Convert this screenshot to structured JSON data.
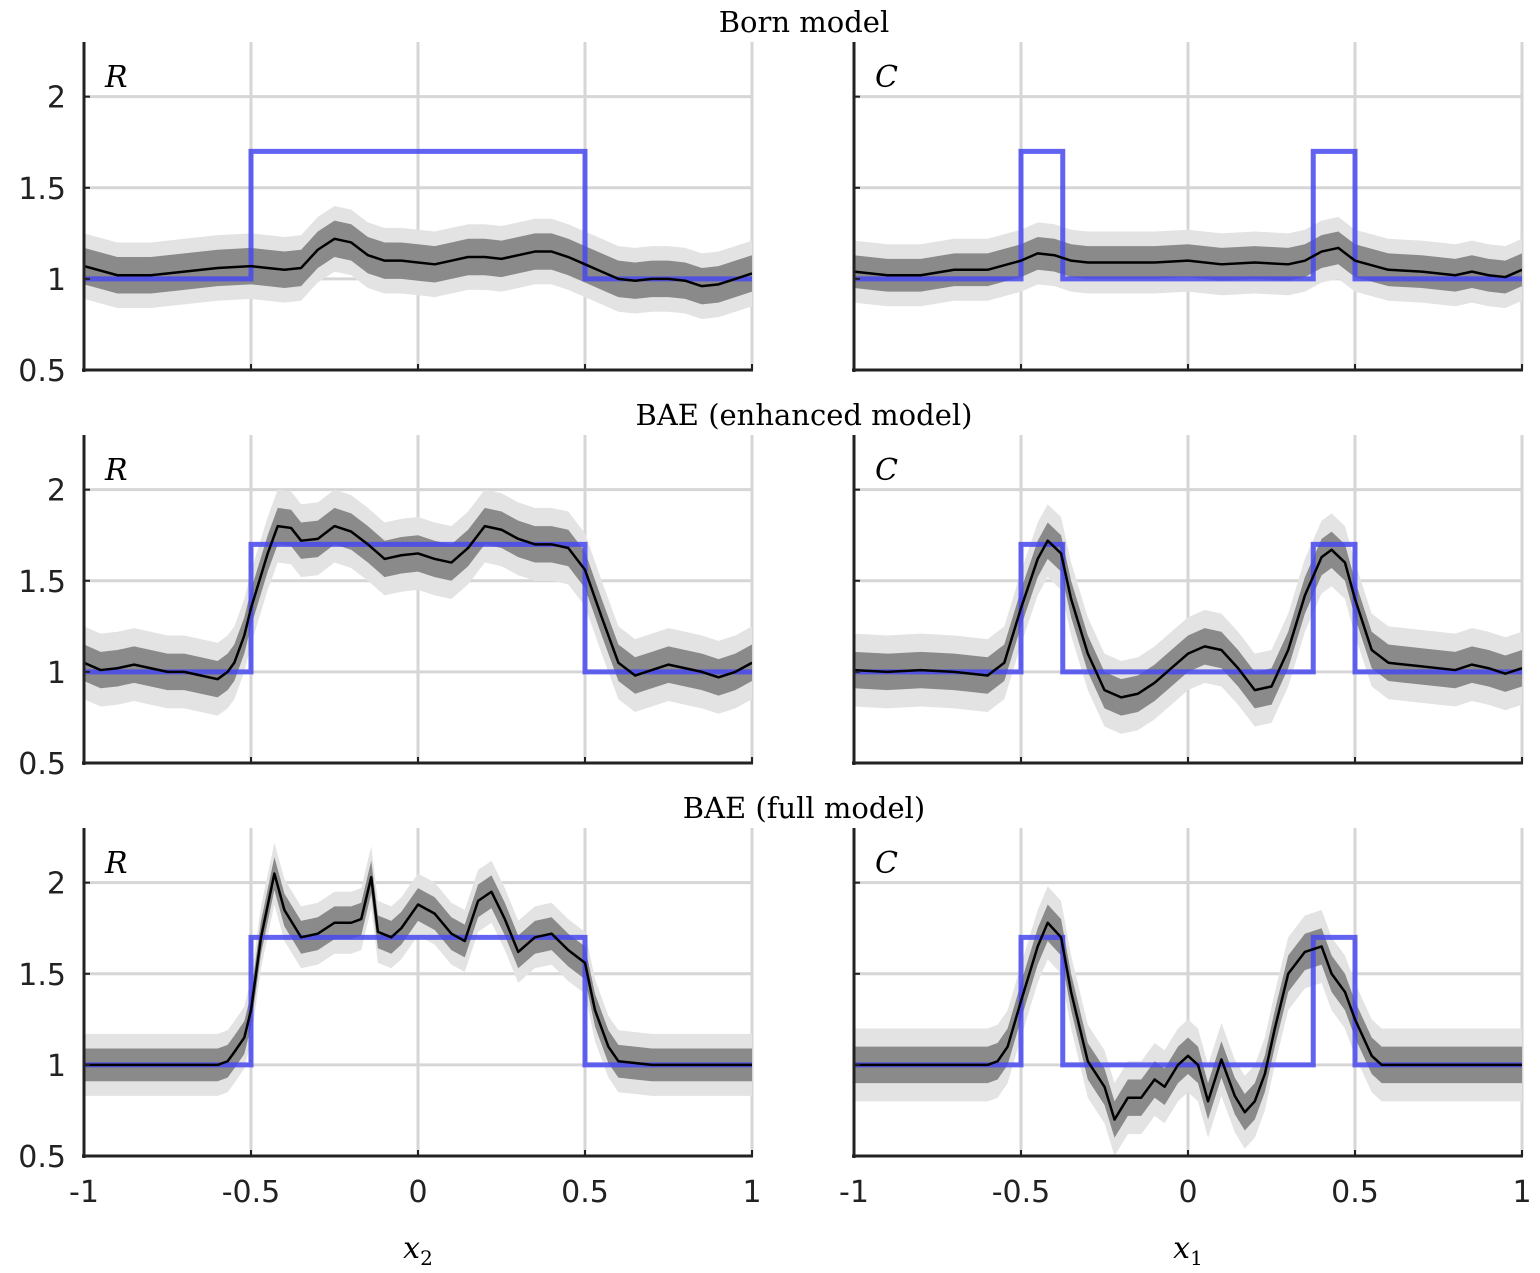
{
  "row_titles": [
    "Born model",
    "BAE (enhanced model)",
    "BAE (full model)"
  ],
  "panel_labels": [
    "R",
    "C"
  ],
  "xlabels": [
    {
      "var": "x",
      "sub": "2"
    },
    {
      "var": "x",
      "sub": "1"
    }
  ],
  "x_ticks": [
    "-1",
    "-0.5",
    "0",
    "0.5",
    "1"
  ],
  "y_ticks": [
    "0.5",
    "1",
    "1.5",
    "2"
  ],
  "colors": {
    "truth": "#4848f0",
    "estimate": "#000000",
    "band_inner": "#8a8a8a",
    "band_outer": "#e3e3e3",
    "grid": "#d6d6d6",
    "axis": "#222222"
  },
  "chart_data": [
    {
      "type": "line",
      "row": "Born model",
      "panel": "R",
      "xlabel": "x_2",
      "xlim": [
        -1,
        1
      ],
      "ylim": [
        0.5,
        2.3
      ],
      "grid": true,
      "truth": {
        "x": [
          -1,
          -0.5,
          -0.5,
          0.5,
          0.5,
          1
        ],
        "y": [
          1,
          1,
          1.7,
          1.7,
          1,
          1
        ]
      },
      "x": [
        -1,
        -0.9,
        -0.8,
        -0.7,
        -0.6,
        -0.5,
        -0.45,
        -0.4,
        -0.35,
        -0.3,
        -0.25,
        -0.2,
        -0.15,
        -0.1,
        -0.05,
        0,
        0.05,
        0.1,
        0.15,
        0.2,
        0.25,
        0.3,
        0.35,
        0.4,
        0.45,
        0.5,
        0.55,
        0.6,
        0.65,
        0.7,
        0.75,
        0.8,
        0.85,
        0.9,
        0.95,
        1
      ],
      "mean": [
        1.07,
        1.02,
        1.02,
        1.04,
        1.06,
        1.07,
        1.06,
        1.05,
        1.06,
        1.16,
        1.22,
        1.2,
        1.13,
        1.1,
        1.1,
        1.09,
        1.08,
        1.1,
        1.12,
        1.12,
        1.11,
        1.13,
        1.15,
        1.15,
        1.12,
        1.08,
        1.04,
        1,
        0.99,
        1,
        1,
        0.99,
        0.96,
        0.97,
        1,
        1.03
      ],
      "inner_halfwidth": 0.1,
      "outer_halfwidth": 0.18
    },
    {
      "type": "line",
      "row": "Born model",
      "panel": "C",
      "xlabel": "x_1",
      "xlim": [
        -1,
        1
      ],
      "ylim": [
        0.5,
        2.3
      ],
      "grid": true,
      "truth": {
        "x": [
          -1,
          -0.5,
          -0.5,
          -0.375,
          -0.375,
          0.375,
          0.375,
          0.5,
          0.5,
          1
        ],
        "y": [
          1,
          1,
          1.7,
          1.7,
          1,
          1,
          1.7,
          1.7,
          1,
          1
        ]
      },
      "x": [
        -1,
        -0.9,
        -0.8,
        -0.7,
        -0.6,
        -0.5,
        -0.45,
        -0.4,
        -0.35,
        -0.3,
        -0.2,
        -0.1,
        0,
        0.1,
        0.2,
        0.3,
        0.35,
        0.4,
        0.45,
        0.5,
        0.6,
        0.7,
        0.8,
        0.85,
        0.9,
        0.95,
        1
      ],
      "mean": [
        1.04,
        1.02,
        1.02,
        1.05,
        1.05,
        1.1,
        1.14,
        1.13,
        1.1,
        1.09,
        1.09,
        1.09,
        1.1,
        1.08,
        1.09,
        1.08,
        1.1,
        1.15,
        1.17,
        1.1,
        1.05,
        1.04,
        1.02,
        1.04,
        1.02,
        1.01,
        1.05
      ],
      "inner_halfwidth": 0.09,
      "outer_halfwidth": 0.17
    },
    {
      "type": "line",
      "row": "BAE (enhanced model)",
      "panel": "R",
      "xlabel": "x_2",
      "xlim": [
        -1,
        1
      ],
      "ylim": [
        0.5,
        2.3
      ],
      "grid": true,
      "truth": {
        "x": [
          -1,
          -0.5,
          -0.5,
          0.5,
          0.5,
          1
        ],
        "y": [
          1,
          1,
          1.7,
          1.7,
          1,
          1
        ]
      },
      "x": [
        -1,
        -0.95,
        -0.9,
        -0.85,
        -0.8,
        -0.75,
        -0.7,
        -0.65,
        -0.6,
        -0.57,
        -0.55,
        -0.52,
        -0.5,
        -0.45,
        -0.42,
        -0.38,
        -0.35,
        -0.3,
        -0.25,
        -0.2,
        -0.15,
        -0.1,
        -0.05,
        0,
        0.05,
        0.1,
        0.15,
        0.2,
        0.25,
        0.3,
        0.35,
        0.4,
        0.45,
        0.5,
        0.55,
        0.6,
        0.65,
        0.7,
        0.75,
        0.8,
        0.85,
        0.9,
        0.95,
        1
      ],
      "mean": [
        1.05,
        1.01,
        1.02,
        1.04,
        1.02,
        1.0,
        1.0,
        0.98,
        0.96,
        1.0,
        1.05,
        1.2,
        1.35,
        1.65,
        1.8,
        1.79,
        1.72,
        1.73,
        1.8,
        1.77,
        1.7,
        1.62,
        1.64,
        1.65,
        1.62,
        1.6,
        1.68,
        1.8,
        1.78,
        1.73,
        1.7,
        1.7,
        1.68,
        1.56,
        1.3,
        1.05,
        0.98,
        1.01,
        1.04,
        1.02,
        1.0,
        0.97,
        1.0,
        1.05
      ],
      "inner_halfwidth": 0.1,
      "outer_halfwidth": 0.2
    },
    {
      "type": "line",
      "row": "BAE (enhanced model)",
      "panel": "C",
      "xlabel": "x_1",
      "xlim": [
        -1,
        1
      ],
      "ylim": [
        0.5,
        2.3
      ],
      "grid": true,
      "truth": {
        "x": [
          -1,
          -0.5,
          -0.5,
          -0.375,
          -0.375,
          0.375,
          0.375,
          0.5,
          0.5,
          1
        ],
        "y": [
          1,
          1,
          1.7,
          1.7,
          1,
          1,
          1.7,
          1.7,
          1,
          1
        ]
      },
      "x": [
        -1,
        -0.9,
        -0.8,
        -0.7,
        -0.6,
        -0.55,
        -0.5,
        -0.45,
        -0.42,
        -0.38,
        -0.35,
        -0.3,
        -0.25,
        -0.2,
        -0.15,
        -0.1,
        -0.05,
        0,
        0.05,
        0.1,
        0.15,
        0.2,
        0.25,
        0.3,
        0.35,
        0.4,
        0.43,
        0.47,
        0.5,
        0.55,
        0.6,
        0.7,
        0.8,
        0.85,
        0.9,
        0.95,
        1
      ],
      "mean": [
        1.01,
        1.0,
        1.01,
        1.0,
        0.98,
        1.05,
        1.35,
        1.62,
        1.72,
        1.65,
        1.4,
        1.1,
        0.9,
        0.86,
        0.88,
        0.94,
        1.02,
        1.1,
        1.14,
        1.12,
        1.02,
        0.9,
        0.92,
        1.12,
        1.42,
        1.63,
        1.67,
        1.6,
        1.4,
        1.12,
        1.05,
        1.03,
        1.01,
        1.04,
        1.02,
        0.99,
        1.02
      ],
      "inner_halfwidth": 0.1,
      "outer_halfwidth": 0.2
    },
    {
      "type": "line",
      "row": "BAE (full model)",
      "panel": "R",
      "xlabel": "x_2",
      "xlim": [
        -1,
        1
      ],
      "ylim": [
        0.5,
        2.3
      ],
      "grid": true,
      "truth": {
        "x": [
          -1,
          -0.5,
          -0.5,
          0.5,
          0.5,
          1
        ],
        "y": [
          1,
          1,
          1.7,
          1.7,
          1,
          1
        ]
      },
      "x": [
        -1,
        -0.8,
        -0.6,
        -0.57,
        -0.55,
        -0.52,
        -0.5,
        -0.47,
        -0.43,
        -0.4,
        -0.35,
        -0.3,
        -0.25,
        -0.2,
        -0.17,
        -0.14,
        -0.12,
        -0.08,
        -0.05,
        0,
        0.05,
        0.1,
        0.14,
        0.18,
        0.22,
        0.26,
        0.3,
        0.35,
        0.4,
        0.45,
        0.5,
        0.53,
        0.57,
        0.6,
        0.7,
        0.8,
        0.9,
        1
      ],
      "mean": [
        1.0,
        1.0,
        1.0,
        1.02,
        1.07,
        1.15,
        1.3,
        1.7,
        2.05,
        1.85,
        1.7,
        1.72,
        1.78,
        1.78,
        1.8,
        2.03,
        1.73,
        1.7,
        1.75,
        1.88,
        1.83,
        1.72,
        1.68,
        1.9,
        1.95,
        1.8,
        1.62,
        1.7,
        1.72,
        1.63,
        1.56,
        1.3,
        1.1,
        1.02,
        1.0,
        1.0,
        1.0,
        1.0
      ],
      "inner_halfwidth": 0.09,
      "outer_halfwidth": 0.17
    },
    {
      "type": "line",
      "row": "BAE (full model)",
      "panel": "C",
      "xlabel": "x_1",
      "xlim": [
        -1,
        1
      ],
      "ylim": [
        0.5,
        2.3
      ],
      "grid": true,
      "truth": {
        "x": [
          -1,
          -0.5,
          -0.5,
          -0.375,
          -0.375,
          0.375,
          0.375,
          0.5,
          0.5,
          1
        ],
        "y": [
          1,
          1,
          1.7,
          1.7,
          1,
          1,
          1.7,
          1.7,
          1,
          1
        ]
      },
      "x": [
        -1,
        -0.6,
        -0.57,
        -0.54,
        -0.5,
        -0.45,
        -0.42,
        -0.38,
        -0.35,
        -0.3,
        -0.25,
        -0.22,
        -0.18,
        -0.14,
        -0.1,
        -0.07,
        -0.03,
        0,
        0.03,
        0.06,
        0.1,
        0.14,
        0.17,
        0.2,
        0.23,
        0.26,
        0.3,
        0.35,
        0.4,
        0.43,
        0.47,
        0.5,
        0.55,
        0.58,
        0.6,
        0.7,
        0.8,
        0.9,
        1
      ],
      "mean": [
        1.0,
        1.0,
        1.02,
        1.1,
        1.35,
        1.65,
        1.78,
        1.7,
        1.4,
        1.02,
        0.88,
        0.7,
        0.82,
        0.82,
        0.92,
        0.88,
        1.0,
        1.05,
        1.0,
        0.8,
        1.03,
        0.83,
        0.74,
        0.8,
        0.95,
        1.2,
        1.5,
        1.62,
        1.65,
        1.5,
        1.4,
        1.25,
        1.05,
        1.0,
        1.0,
        1.0,
        1.0,
        1.0,
        1.0
      ],
      "inner_halfwidth": 0.1,
      "outer_halfwidth": 0.2
    }
  ]
}
